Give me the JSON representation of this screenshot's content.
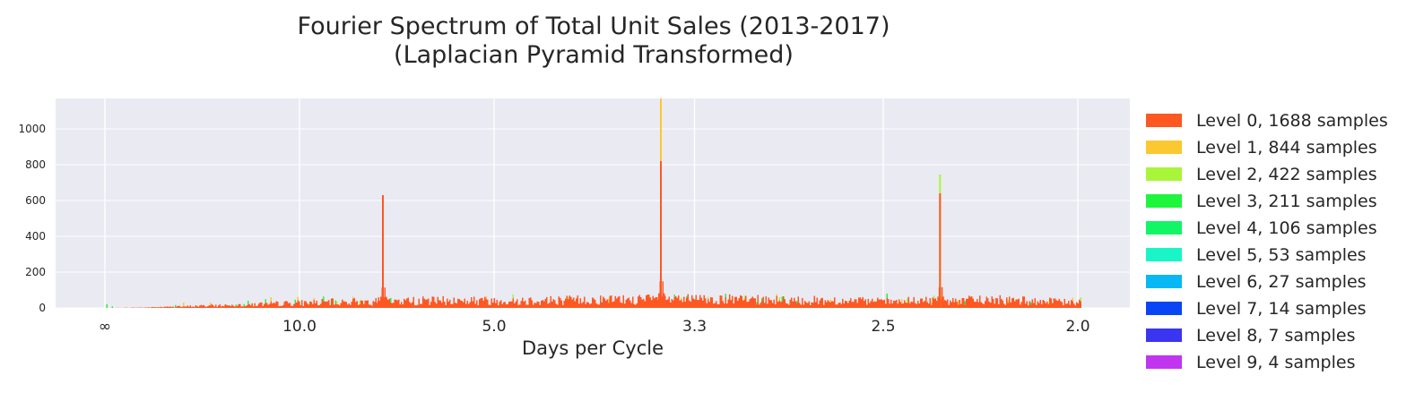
{
  "chart_data": {
    "type": "bar",
    "title": "Fourier Spectrum of Total Unit Sales (2013-2017)",
    "subtitle": "(Laplacian Pyramid Transformed)",
    "xlabel": "Days per Cycle",
    "ylabel": "",
    "x_axis": "reciprocal frequency (days per cycle); infinity at zero frequency",
    "x_range_frequency": [
      0.0,
      0.5
    ],
    "ylim": [
      0,
      1170
    ],
    "yticks": [
      0,
      200,
      400,
      600,
      800,
      1000
    ],
    "ytick_labels": [
      "0",
      "200",
      "400",
      "600",
      "800",
      "1000"
    ],
    "xticks": [
      {
        "label": "∞",
        "days": null
      },
      {
        "label": "10.0",
        "days": 10.0
      },
      {
        "label": "5.0",
        "days": 5.0
      },
      {
        "label": "3.3",
        "days": 3.3
      },
      {
        "label": "2.5",
        "days": 2.5
      },
      {
        "label": "2.0",
        "days": 2.0
      }
    ],
    "grid": true,
    "legend_position": "right",
    "baseline_spectrum": [
      {
        "days": 50.0,
        "value": 2
      },
      {
        "days": 25.0,
        "value": 8
      },
      {
        "days": 14.0,
        "value": 18
      },
      {
        "days": 10.0,
        "value": 28
      },
      {
        "days": 8.0,
        "value": 34
      },
      {
        "days": 6.0,
        "value": 40
      },
      {
        "days": 5.0,
        "value": 40
      },
      {
        "days": 4.0,
        "value": 45
      },
      {
        "days": 3.3,
        "value": 48
      },
      {
        "days": 2.8,
        "value": 42
      },
      {
        "days": 2.5,
        "value": 35
      },
      {
        "days": 2.2,
        "value": 45
      },
      {
        "days": 2.0,
        "value": 30
      }
    ],
    "peaks": [
      {
        "days": 7.0,
        "value": 630,
        "top_level": 0
      },
      {
        "days": 3.5,
        "value": 820,
        "top_level": 0
      },
      {
        "days": 3.5,
        "value": 1170,
        "top_level": 1
      },
      {
        "days": 2.33,
        "value": 640,
        "top_level": 0
      },
      {
        "days": 2.33,
        "value": 745,
        "top_level": 2
      }
    ],
    "series": [
      {
        "name": "Level 0, 1688 samples",
        "color": "#ff5722"
      },
      {
        "name": "Level 1, 844 samples",
        "color": "#fbc831"
      },
      {
        "name": "Level 2, 422 samples",
        "color": "#a8f53a"
      },
      {
        "name": "Level 3, 211 samples",
        "color": "#1ef53d"
      },
      {
        "name": "Level 4, 106 samples",
        "color": "#12f565"
      },
      {
        "name": "Level 5, 53 samples",
        "color": "#1af5c8"
      },
      {
        "name": "Level 6, 27 samples",
        "color": "#08b8f5"
      },
      {
        "name": "Level 7, 14 samples",
        "color": "#0a45f5"
      },
      {
        "name": "Level 8, 7 samples",
        "color": "#3a35f0"
      },
      {
        "name": "Level 9, 4 samples",
        "color": "#c235f0"
      }
    ],
    "plot_background": "#eaeaf2",
    "grid_color": "#ffffff"
  }
}
